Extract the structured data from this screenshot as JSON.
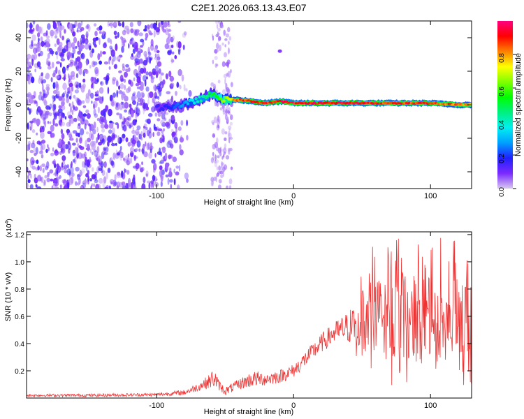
{
  "title": "C2E1.2026.063.13.43.E07",
  "chart_data": [
    {
      "type": "heatmap",
      "name": "spectrogram",
      "xlabel": "Height of straight line (km)",
      "ylabel": "Frequency (Hz)",
      "xlim": [
        -195,
        130
      ],
      "ylim": [
        -50,
        50
      ],
      "xticks": [
        -100,
        0,
        100
      ],
      "yticks": [
        -40,
        -20,
        0,
        20,
        40
      ],
      "colorbar": {
        "label": "Normalized spectral amplitude",
        "range": [
          0,
          1
        ],
        "ticks": [
          "0.0",
          "0.2",
          "0.4",
          "0.6",
          "0.8"
        ],
        "tick_values": [
          0,
          0.2,
          0.4,
          0.6,
          0.8
        ],
        "colormap": [
          "#d8c8f0",
          "#7a2aff",
          "#2020ff",
          "#00a0ff",
          "#00f0f0",
          "#00f080",
          "#00ff00",
          "#80ff00",
          "#ffff00",
          "#ff8000",
          "#ff0000",
          "#ff0080"
        ]
      },
      "noise_region_km": [
        -195,
        -75
      ],
      "noise_band2_km": [
        -60,
        -45
      ],
      "signal_track": {
        "x": [
          -100,
          -90,
          -80,
          -70,
          -60,
          -50,
          -40,
          -30,
          -20,
          -10,
          0,
          20,
          40,
          60,
          80,
          100,
          120,
          130
        ],
        "freq_hz": [
          -2,
          -1,
          0,
          3,
          6,
          3,
          3,
          2,
          1,
          2,
          1,
          1,
          1,
          1,
          1,
          1,
          0,
          0
        ],
        "amplitude": [
          0.15,
          0.2,
          0.3,
          0.45,
          0.5,
          0.75,
          0.9,
          0.95,
          0.95,
          1.0,
          1.0,
          1.0,
          1.0,
          0.95,
          0.95,
          0.95,
          0.9,
          0.85
        ]
      }
    },
    {
      "type": "line",
      "name": "snr",
      "xlabel": "Height of straight line (km)",
      "ylabel": "SNR (10 * v/v)",
      "y_multiplier": "(x10",
      "y_multiplier_exp": "4",
      "y_multiplier_close": ")",
      "xlim": [
        -195,
        130
      ],
      "ylim": [
        0,
        1.22
      ],
      "xticks": [
        -100,
        0,
        100
      ],
      "yticks": [
        "0.2",
        "0.4",
        "0.6",
        "0.8",
        "1.0",
        "1.2"
      ],
      "ytick_values": [
        0.2,
        0.4,
        0.6,
        0.8,
        1.0,
        1.2
      ],
      "color": "#ee3333",
      "envelope": {
        "x": [
          -195,
          -150,
          -100,
          -80,
          -70,
          -62,
          -58,
          -55,
          -50,
          -40,
          -30,
          -20,
          -10,
          0,
          10,
          20,
          30,
          40,
          50,
          60,
          70,
          80,
          90,
          100,
          110,
          120,
          130
        ],
        "mean": [
          0.02,
          0.02,
          0.025,
          0.04,
          0.08,
          0.12,
          0.15,
          0.1,
          0.05,
          0.1,
          0.14,
          0.14,
          0.16,
          0.2,
          0.3,
          0.4,
          0.48,
          0.52,
          0.56,
          0.58,
          0.6,
          0.6,
          0.6,
          0.58,
          0.58,
          0.58,
          0.56
        ],
        "spread": [
          0.01,
          0.012,
          0.012,
          0.02,
          0.03,
          0.05,
          0.08,
          0.04,
          0.03,
          0.04,
          0.06,
          0.05,
          0.05,
          0.05,
          0.06,
          0.07,
          0.08,
          0.12,
          0.22,
          0.3,
          0.32,
          0.3,
          0.32,
          0.3,
          0.32,
          0.3,
          0.3
        ]
      }
    }
  ]
}
